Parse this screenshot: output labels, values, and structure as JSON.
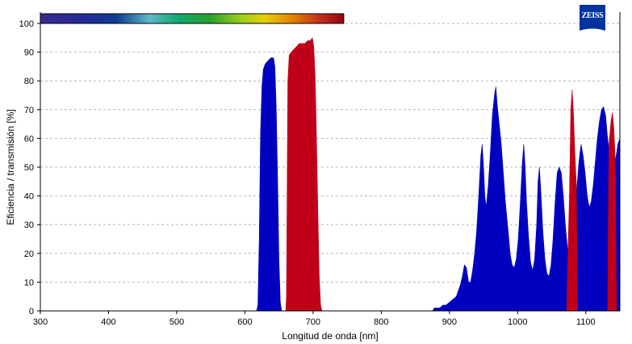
{
  "brand": {
    "logo_text": "ZEISS",
    "logo_color": "#0033a0"
  },
  "chart_data": {
    "type": "area",
    "xlabel": "Longitud de onda [nm]",
    "ylabel": "Eficiencia / transmisión [%]",
    "xlim": [
      300,
      1150
    ],
    "ylim": [
      0,
      100
    ],
    "xticks": [
      300,
      400,
      500,
      600,
      700,
      800,
      900,
      1000,
      1100
    ],
    "yticks": [
      0,
      10,
      20,
      30,
      40,
      50,
      60,
      70,
      80,
      90,
      100
    ],
    "grid": "horizontal dashed",
    "legend": "none",
    "spectrum_bar": {
      "from_nm": 300,
      "to_nm": 745
    },
    "series": [
      {
        "color": "#0000c0",
        "points": [
          [
            617,
            0
          ],
          [
            619,
            2
          ],
          [
            621,
            25
          ],
          [
            623,
            62
          ],
          [
            625,
            78
          ],
          [
            627,
            84
          ],
          [
            630,
            86
          ],
          [
            634,
            87
          ],
          [
            638,
            88
          ],
          [
            642,
            88
          ],
          [
            644,
            85
          ],
          [
            646,
            70
          ],
          [
            648,
            45
          ],
          [
            650,
            18
          ],
          [
            652,
            3
          ],
          [
            654,
            0
          ],
          [
            875,
            0
          ],
          [
            878,
            1
          ],
          [
            882,
            1
          ],
          [
            886,
            1
          ],
          [
            890,
            2
          ],
          [
            895,
            2
          ],
          [
            900,
            3
          ],
          [
            905,
            4
          ],
          [
            910,
            5
          ],
          [
            913,
            7
          ],
          [
            916,
            9
          ],
          [
            919,
            12
          ],
          [
            922,
            16
          ],
          [
            925,
            15
          ],
          [
            928,
            10
          ],
          [
            931,
            10
          ],
          [
            934,
            14
          ],
          [
            937,
            20
          ],
          [
            940,
            28
          ],
          [
            943,
            40
          ],
          [
            946,
            54
          ],
          [
            948,
            58
          ],
          [
            950,
            50
          ],
          [
            952,
            40
          ],
          [
            954,
            36
          ],
          [
            957,
            44
          ],
          [
            960,
            55
          ],
          [
            963,
            68
          ],
          [
            966,
            75
          ],
          [
            968,
            78
          ],
          [
            970,
            72
          ],
          [
            973,
            65
          ],
          [
            976,
            58
          ],
          [
            979,
            48
          ],
          [
            982,
            38
          ],
          [
            986,
            28
          ],
          [
            989,
            20
          ],
          [
            992,
            16
          ],
          [
            995,
            15
          ],
          [
            998,
            18
          ],
          [
            1001,
            25
          ],
          [
            1004,
            38
          ],
          [
            1007,
            52
          ],
          [
            1009,
            58
          ],
          [
            1011,
            50
          ],
          [
            1013,
            38
          ],
          [
            1016,
            26
          ],
          [
            1019,
            17
          ],
          [
            1022,
            14
          ],
          [
            1025,
            18
          ],
          [
            1028,
            30
          ],
          [
            1030,
            45
          ],
          [
            1032,
            50
          ],
          [
            1034,
            42
          ],
          [
            1037,
            28
          ],
          [
            1040,
            18
          ],
          [
            1043,
            13
          ],
          [
            1046,
            12
          ],
          [
            1049,
            16
          ],
          [
            1052,
            25
          ],
          [
            1055,
            38
          ],
          [
            1058,
            48
          ],
          [
            1061,
            50
          ],
          [
            1064,
            48
          ],
          [
            1067,
            40
          ],
          [
            1070,
            30
          ],
          [
            1073,
            22
          ],
          [
            1076,
            20
          ],
          [
            1079,
            24
          ],
          [
            1082,
            30
          ],
          [
            1085,
            38
          ],
          [
            1088,
            46
          ],
          [
            1090,
            52
          ],
          [
            1093,
            58
          ],
          [
            1096,
            54
          ],
          [
            1099,
            48
          ],
          [
            1102,
            40
          ],
          [
            1105,
            36
          ],
          [
            1108,
            38
          ],
          [
            1111,
            44
          ],
          [
            1114,
            52
          ],
          [
            1117,
            60
          ],
          [
            1120,
            66
          ],
          [
            1123,
            70
          ],
          [
            1126,
            71
          ],
          [
            1129,
            68
          ],
          [
            1132,
            60
          ],
          [
            1135,
            54
          ],
          [
            1138,
            50
          ],
          [
            1141,
            50
          ],
          [
            1144,
            53
          ],
          [
            1147,
            58
          ],
          [
            1150,
            60
          ]
        ]
      },
      {
        "color": "#c00018",
        "points": [
          [
            660,
            0
          ],
          [
            661,
            5
          ],
          [
            662,
            45
          ],
          [
            663,
            80
          ],
          [
            665,
            89
          ],
          [
            668,
            90
          ],
          [
            672,
            91
          ],
          [
            676,
            92
          ],
          [
            680,
            93
          ],
          [
            684,
            93
          ],
          [
            688,
            93
          ],
          [
            692,
            94
          ],
          [
            696,
            94
          ],
          [
            699,
            95
          ],
          [
            701,
            92
          ],
          [
            703,
            82
          ],
          [
            705,
            60
          ],
          [
            707,
            35
          ],
          [
            709,
            12
          ],
          [
            711,
            2
          ],
          [
            713,
            0
          ],
          [
            1072,
            0
          ],
          [
            1074,
            22
          ],
          [
            1076,
            40
          ],
          [
            1078,
            70
          ],
          [
            1080,
            77
          ],
          [
            1082,
            68
          ],
          [
            1084,
            55
          ],
          [
            1086,
            45
          ],
          [
            1088,
            0
          ],
          [
            1132,
            0
          ],
          [
            1134,
            58
          ],
          [
            1137,
            66
          ],
          [
            1139,
            69
          ],
          [
            1141,
            64
          ],
          [
            1143,
            54
          ],
          [
            1145,
            0
          ]
        ]
      }
    ]
  }
}
